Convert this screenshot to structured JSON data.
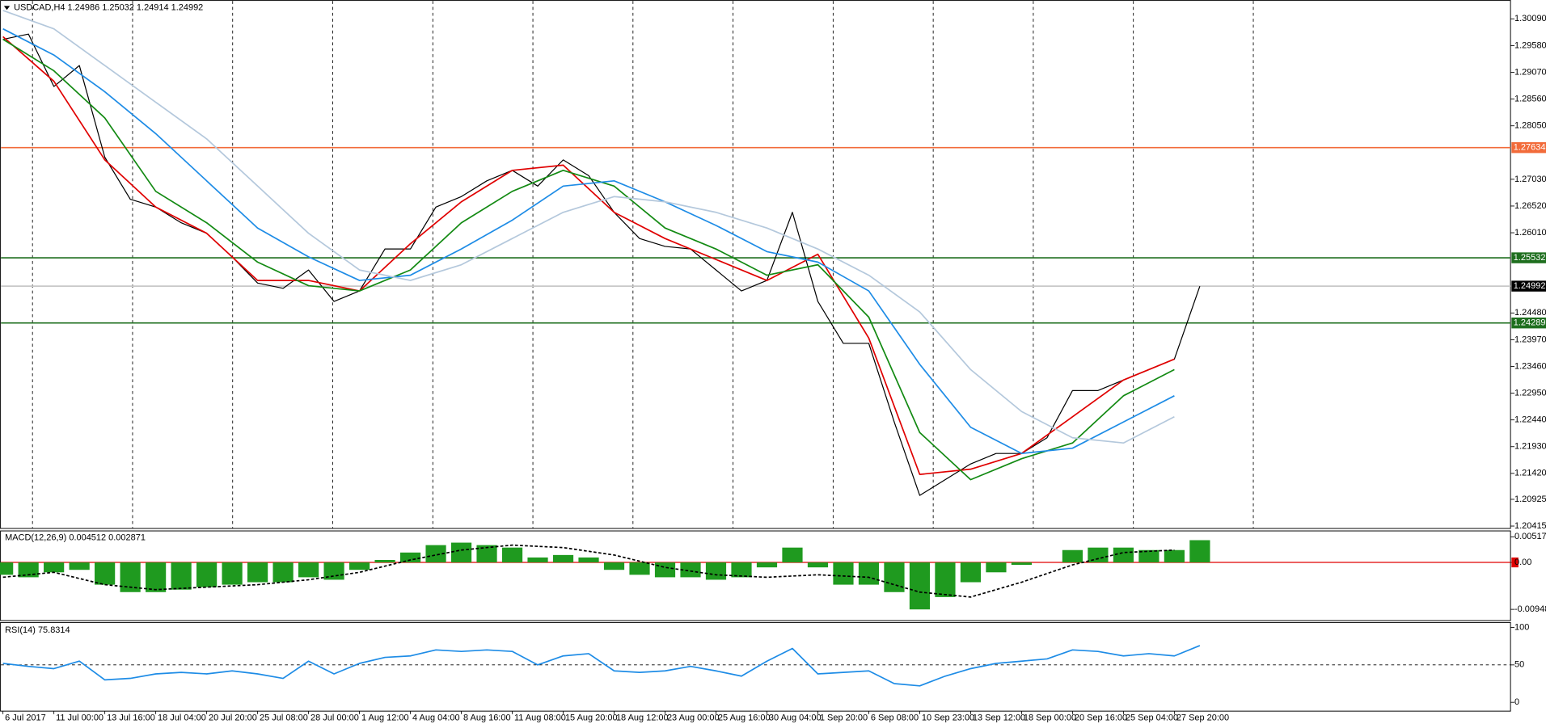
{
  "chart_data": [
    {
      "type": "line",
      "title": "USDCAD,H4  1.24986 1.25032 1.24914 1.24992",
      "xlim": [
        0,
        59.2
      ],
      "xgrid": [
        1.16,
        5.09,
        9.02,
        12.95,
        16.88,
        20.81,
        24.74,
        28.67,
        32.6,
        36.53,
        40.46,
        44.39,
        49.1
      ],
      "xticks": [
        {
          "value": 0,
          "label": "6 Jul 2017"
        },
        {
          "value": 2,
          "label": "11 Jul 00:00"
        },
        {
          "value": 4,
          "label": "13 Jul 16:00"
        },
        {
          "value": 6,
          "label": "18 Jul 04:00"
        },
        {
          "value": 8,
          "label": "20 Jul 20:00"
        },
        {
          "value": 10,
          "label": "25 Jul 08:00"
        },
        {
          "value": 12,
          "label": "28 Jul 00:00"
        },
        {
          "value": 14,
          "label": "1 Aug 12:00"
        },
        {
          "value": 16,
          "label": "4 Aug 04:00"
        },
        {
          "value": 18,
          "label": "8 Aug 16:00"
        },
        {
          "value": 20,
          "label": "11 Aug 08:00"
        },
        {
          "value": 22,
          "label": "15 Aug 20:00"
        },
        {
          "value": 24,
          "label": "18 Aug 12:00"
        },
        {
          "value": 26,
          "label": "23 Aug 00:00"
        },
        {
          "value": 28,
          "label": "25 Aug 16:00"
        },
        {
          "value": 30,
          "label": "30 Aug 04:00"
        },
        {
          "value": 32,
          "label": "1 Sep 20:00"
        },
        {
          "value": 34,
          "label": "6 Sep 08:00"
        },
        {
          "value": 36,
          "label": "10 Sep 23:00"
        },
        {
          "value": 38,
          "label": "13 Sep 12:00"
        },
        {
          "value": 40,
          "label": "18 Sep 00:00"
        },
        {
          "value": 42,
          "label": "20 Sep 16:00"
        },
        {
          "value": 44,
          "label": "25 Sep 04:00"
        },
        {
          "value": 46,
          "label": "27 Sep 20:00"
        }
      ],
      "ylim": [
        1.2036,
        1.3045
      ],
      "yticks": [
        {
          "value": 1.3009,
          "label": "1.30090"
        },
        {
          "value": 1.2958,
          "label": "1.29580"
        },
        {
          "value": 1.2907,
          "label": "1.29070"
        },
        {
          "value": 1.2856,
          "label": "1.28560"
        },
        {
          "value": 1.2805,
          "label": "1.28050"
        },
        {
          "value": 1.2703,
          "label": "1.27030"
        },
        {
          "value": 1.2652,
          "label": "1.26520"
        },
        {
          "value": 1.2601,
          "label": "1.26010"
        },
        {
          "value": 1.2448,
          "label": "1.24480"
        },
        {
          "value": 1.2397,
          "label": "1.23970"
        },
        {
          "value": 1.2346,
          "label": "1.23460"
        },
        {
          "value": 1.2295,
          "label": "1.22950"
        },
        {
          "value": 1.2244,
          "label": "1.22440"
        },
        {
          "value": 1.2193,
          "label": "1.21930"
        },
        {
          "value": 1.2142,
          "label": "1.21420"
        },
        1.20925,
        1.20415
      ],
      "levels": [
        {
          "value": 1.27634,
          "color": "#f26b3a"
        },
        {
          "value": 1.25532,
          "color": "#1e6e1e"
        },
        {
          "value": 1.24992,
          "color": "#c8c8c8",
          "label_color": "#000000"
        },
        {
          "value": 1.24289,
          "color": "#1e6e1e"
        }
      ],
      "series": [
        {
          "color": "#000000",
          "x": [
            0,
            1,
            2,
            3,
            4,
            5,
            6,
            7,
            8,
            9,
            10,
            11,
            12,
            13,
            14,
            15,
            16,
            17,
            18,
            19,
            20,
            21,
            22,
            23,
            24,
            25,
            26,
            27,
            28,
            29,
            30,
            31,
            32,
            33,
            34,
            35,
            36,
            37,
            38,
            39,
            40,
            41,
            42,
            43,
            44,
            45,
            46,
            47
          ],
          "values": [
            1.297,
            1.298,
            1.288,
            1.292,
            1.2745,
            1.2665,
            1.265,
            1.262,
            1.26,
            1.2555,
            1.2505,
            1.2495,
            1.253,
            1.247,
            1.249,
            1.257,
            1.257,
            1.265,
            1.267,
            1.27,
            1.272,
            1.269,
            1.274,
            1.271,
            1.264,
            1.259,
            1.2575,
            1.257,
            1.253,
            1.249,
            1.251,
            1.264,
            1.247,
            1.239,
            1.239,
            1.224,
            1.21,
            1.213,
            1.216,
            1.218,
            1.218,
            1.221,
            1.23,
            1.23,
            1.232,
            1.234,
            1.236,
            1.2499
          ]
        },
        {
          "color": "#e00000",
          "x": [
            0,
            2,
            4,
            6,
            8,
            10,
            12,
            14,
            16,
            18,
            20,
            22,
            24,
            26,
            28,
            30,
            32,
            34,
            36,
            38,
            40,
            42,
            44,
            46
          ],
          "values": [
            1.2975,
            1.289,
            1.274,
            1.265,
            1.26,
            1.251,
            1.251,
            1.249,
            1.258,
            1.266,
            1.272,
            1.273,
            1.264,
            1.259,
            1.255,
            1.251,
            1.256,
            1.24,
            1.214,
            1.215,
            1.218,
            1.225,
            1.232,
            1.236
          ]
        },
        {
          "color": "#138a13",
          "x": [
            0,
            2,
            4,
            6,
            8,
            10,
            12,
            14,
            16,
            18,
            20,
            22,
            24,
            26,
            28,
            30,
            32,
            34,
            36,
            38,
            40,
            42,
            44,
            46
          ],
          "values": [
            1.297,
            1.291,
            1.282,
            1.268,
            1.262,
            1.2545,
            1.25,
            1.249,
            1.253,
            1.262,
            1.268,
            1.272,
            1.269,
            1.261,
            1.257,
            1.252,
            1.254,
            1.244,
            1.222,
            1.213,
            1.217,
            1.22,
            1.229,
            1.234
          ]
        },
        {
          "color": "#1e8ce6",
          "x": [
            0,
            2,
            4,
            6,
            8,
            10,
            12,
            14,
            16,
            18,
            20,
            22,
            24,
            26,
            28,
            30,
            32,
            34,
            36,
            38,
            40,
            42,
            44,
            46
          ],
          "values": [
            1.299,
            1.294,
            1.287,
            1.279,
            1.27,
            1.261,
            1.2555,
            1.251,
            1.252,
            1.257,
            1.2625,
            1.269,
            1.27,
            1.266,
            1.2615,
            1.2565,
            1.2545,
            1.249,
            1.235,
            1.223,
            1.218,
            1.219,
            1.224,
            1.229
          ]
        },
        {
          "color": "#b4c8dc",
          "x": [
            0,
            2,
            4,
            6,
            8,
            10,
            12,
            14,
            16,
            18,
            20,
            22,
            24,
            26,
            28,
            30,
            32,
            34,
            36,
            38,
            40,
            42,
            44,
            46
          ],
          "values": [
            1.3025,
            1.299,
            1.292,
            1.285,
            1.278,
            1.269,
            1.26,
            1.253,
            1.251,
            1.254,
            1.259,
            1.264,
            1.267,
            1.266,
            1.264,
            1.261,
            1.257,
            1.252,
            1.245,
            1.234,
            1.226,
            1.221,
            1.22,
            1.225
          ]
        }
      ]
    },
    {
      "type": "bar",
      "title": "MACD(12,26,9) 0.004512 0.002871",
      "ylim": [
        -0.01175,
        0.00637
      ],
      "yticks": [
        0.005178,
        {
          "value": 0,
          "label": "0.00"
        },
        -0.009487
      ],
      "zero_color": "#e00000",
      "series": [
        {
          "color": "#1f9a1f",
          "x": [
            0,
            1,
            2,
            3,
            4,
            5,
            6,
            7,
            8,
            9,
            10,
            11,
            12,
            13,
            14,
            15,
            16,
            17,
            18,
            19,
            20,
            21,
            22,
            23,
            24,
            25,
            26,
            27,
            28,
            29,
            30,
            31,
            32,
            33,
            34,
            35,
            36,
            37,
            38,
            39,
            40,
            41,
            42,
            43,
            44,
            45,
            46,
            47
          ],
          "values": [
            -0.0025,
            -0.003,
            -0.002,
            -0.0015,
            -0.0045,
            -0.006,
            -0.006,
            -0.0055,
            -0.005,
            -0.0045,
            -0.004,
            -0.004,
            -0.003,
            -0.0035,
            -0.0015,
            0.0005,
            0.002,
            0.0035,
            0.004,
            0.0035,
            0.003,
            0.001,
            0.0015,
            0.001,
            -0.0015,
            -0.0025,
            -0.003,
            -0.003,
            -0.0035,
            -0.003,
            -0.001,
            0.003,
            -0.001,
            -0.0045,
            -0.0045,
            -0.006,
            -0.0095,
            -0.007,
            -0.004,
            -0.002,
            -0.0005,
            0,
            0.0025,
            0.003,
            0.003,
            0.0025,
            0.0025,
            0.0045
          ]
        },
        {
          "color": "#000000",
          "dashed": true,
          "x": [
            0,
            2,
            4,
            6,
            8,
            10,
            12,
            14,
            16,
            18,
            20,
            22,
            24,
            26,
            28,
            30,
            32,
            34,
            36,
            38,
            40,
            42,
            44,
            46
          ],
          "values": [
            -0.003,
            -0.002,
            -0.0045,
            -0.0055,
            -0.005,
            -0.0045,
            -0.0035,
            -0.002,
            0.0005,
            0.0025,
            0.0035,
            0.003,
            0.0015,
            -0.001,
            -0.0025,
            -0.003,
            -0.0025,
            -0.003,
            -0.006,
            -0.007,
            -0.004,
            -0.0005,
            0.002,
            0.0025
          ]
        }
      ]
    },
    {
      "type": "line",
      "title": "RSI(14) 75.8314",
      "ylim": [
        -11.8,
        106.6
      ],
      "yticks": [
        100,
        50,
        0
      ],
      "levels": [
        {
          "value": 50,
          "color": "#000000",
          "dashed": true
        }
      ],
      "series": [
        {
          "color": "#1e8ce6",
          "x": [
            0,
            1,
            2,
            3,
            4,
            5,
            6,
            7,
            8,
            9,
            10,
            11,
            12,
            13,
            14,
            15,
            16,
            17,
            18,
            19,
            20,
            21,
            22,
            23,
            24,
            25,
            26,
            27,
            28,
            29,
            30,
            31,
            32,
            33,
            34,
            35,
            36,
            37,
            38,
            39,
            40,
            41,
            42,
            43,
            44,
            45,
            46,
            47
          ],
          "values": [
            52,
            48,
            45,
            55,
            30,
            32,
            38,
            40,
            38,
            42,
            38,
            32,
            55,
            38,
            52,
            60,
            62,
            70,
            68,
            70,
            68,
            50,
            62,
            65,
            42,
            40,
            42,
            48,
            42,
            35,
            55,
            72,
            38,
            40,
            42,
            25,
            22,
            35,
            45,
            52,
            55,
            58,
            70,
            68,
            62,
            65,
            62,
            75.8314
          ]
        }
      ]
    }
  ]
}
